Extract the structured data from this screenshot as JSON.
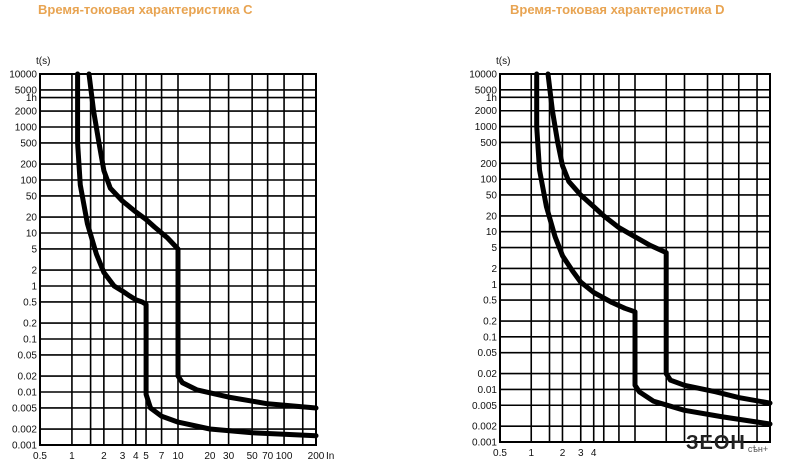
{
  "chart_data": [
    {
      "type": "line",
      "title": "Время-токовая характеристика C",
      "ylabel": "t(s)",
      "xlabel": "In",
      "x_scale": "log",
      "y_scale": "log",
      "xlim": [
        0.5,
        200
      ],
      "ylim": [
        0.001,
        10000
      ],
      "grid": true,
      "x_ticks": [
        {
          "v": 0.5,
          "label": "0.5"
        },
        {
          "v": 1,
          "label": "1"
        },
        {
          "v": 2,
          "label": "2"
        },
        {
          "v": 3,
          "label": "3"
        },
        {
          "v": 4,
          "label": "4"
        },
        {
          "v": 5,
          "label": "5"
        },
        {
          "v": 7,
          "label": "7"
        },
        {
          "v": 10,
          "label": "10"
        },
        {
          "v": 20,
          "label": "20"
        },
        {
          "v": 30,
          "label": "30"
        },
        {
          "v": 50,
          "label": "50"
        },
        {
          "v": 70,
          "label": "70"
        },
        {
          "v": 100,
          "label": "100"
        },
        {
          "v": 200,
          "label": "200"
        }
      ],
      "y_ticks": [
        {
          "v": 10000,
          "label": "10000"
        },
        {
          "v": 5000,
          "label": "5000"
        },
        {
          "v": 3600,
          "label": "1h"
        },
        {
          "v": 2000,
          "label": "2000"
        },
        {
          "v": 1000,
          "label": "1000"
        },
        {
          "v": 500,
          "label": "500"
        },
        {
          "v": 200,
          "label": "200"
        },
        {
          "v": 100,
          "label": "100"
        },
        {
          "v": 50,
          "label": "50"
        },
        {
          "v": 20,
          "label": "20"
        },
        {
          "v": 10,
          "label": "10"
        },
        {
          "v": 5,
          "label": "5"
        },
        {
          "v": 2,
          "label": "2"
        },
        {
          "v": 1,
          "label": "1"
        },
        {
          "v": 0.5,
          "label": "0.5"
        },
        {
          "v": 0.2,
          "label": "0.2"
        },
        {
          "v": 0.1,
          "label": "0.1"
        },
        {
          "v": 0.05,
          "label": "0.05"
        },
        {
          "v": 0.02,
          "label": "0.02"
        },
        {
          "v": 0.01,
          "label": "0.01"
        },
        {
          "v": 0.005,
          "label": "0.005"
        },
        {
          "v": 0.002,
          "label": "0.002"
        },
        {
          "v": 0.001,
          "label": "0.001"
        }
      ],
      "series": [
        {
          "x": [
            1.13,
            1.13,
            1.2,
            1.4,
            1.7,
            2.0,
            2.5,
            3.0,
            3.5,
            4.0,
            4.6,
            5.0,
            5.0,
            5.0,
            5.5,
            7,
            10,
            20,
            50,
            100,
            200
          ],
          "y": [
            10000,
            500,
            80,
            15,
            4,
            1.8,
            1.0,
            0.8,
            0.65,
            0.55,
            0.5,
            0.45,
            0.05,
            0.009,
            0.005,
            0.0035,
            0.0027,
            0.002,
            0.0017,
            0.0016,
            0.0015
          ]
        },
        {
          "x": [
            1.45,
            1.6,
            1.8,
            2.0,
            2.3,
            3,
            4,
            5,
            6,
            8,
            10,
            10,
            10,
            11,
            15,
            30,
            70,
            200
          ],
          "y": [
            10000,
            2000,
            500,
            150,
            70,
            40,
            25,
            18,
            13,
            8,
            5,
            0.05,
            0.02,
            0.015,
            0.011,
            0.008,
            0.006,
            0.005
          ]
        }
      ]
    },
    {
      "type": "line",
      "title": "Время-токовая характеристика D",
      "ylabel": "t(s)",
      "xlabel": "",
      "x_scale": "log",
      "y_scale": "log",
      "xlim": [
        0.5,
        200
      ],
      "ylim": [
        0.001,
        10000
      ],
      "grid": true,
      "x_ticks": [
        {
          "v": 0.5,
          "label": "0.5"
        },
        {
          "v": 1,
          "label": "1"
        },
        {
          "v": 2,
          "label": "2"
        },
        {
          "v": 3,
          "label": "3"
        },
        {
          "v": 4,
          "label": "4"
        }
      ],
      "y_ticks": [
        {
          "v": 10000,
          "label": "10000"
        },
        {
          "v": 5000,
          "label": "5000"
        },
        {
          "v": 3600,
          "label": "1h"
        },
        {
          "v": 2000,
          "label": "2000"
        },
        {
          "v": 1000,
          "label": "1000"
        },
        {
          "v": 500,
          "label": "500"
        },
        {
          "v": 200,
          "label": "200"
        },
        {
          "v": 100,
          "label": "100"
        },
        {
          "v": 50,
          "label": "50"
        },
        {
          "v": 20,
          "label": "20"
        },
        {
          "v": 10,
          "label": "10"
        },
        {
          "v": 5,
          "label": "5"
        },
        {
          "v": 2,
          "label": "2"
        },
        {
          "v": 1,
          "label": "1"
        },
        {
          "v": 0.5,
          "label": "0.5"
        },
        {
          "v": 0.2,
          "label": "0.2"
        },
        {
          "v": 0.1,
          "label": "0.1"
        },
        {
          "v": 0.05,
          "label": "0.05"
        },
        {
          "v": 0.02,
          "label": "0.02"
        },
        {
          "v": 0.01,
          "label": "0.01"
        },
        {
          "v": 0.005,
          "label": "0.005"
        },
        {
          "v": 0.002,
          "label": "0.002"
        },
        {
          "v": 0.001,
          "label": "0.001"
        }
      ],
      "series": [
        {
          "x": [
            1.13,
            1.13,
            1.2,
            1.4,
            1.7,
            2.0,
            2.5,
            3,
            4,
            6,
            8,
            10,
            10,
            10,
            11,
            15,
            30,
            70,
            200
          ],
          "y": [
            10000,
            1000,
            150,
            30,
            8,
            3.5,
            1.8,
            1.1,
            0.7,
            0.45,
            0.35,
            0.3,
            0.02,
            0.012,
            0.009,
            0.006,
            0.004,
            0.003,
            0.0022
          ]
        },
        {
          "x": [
            1.45,
            1.6,
            1.8,
            2.0,
            2.3,
            3,
            4,
            5,
            7,
            10,
            14,
            20,
            20,
            20,
            22,
            30,
            60,
            100,
            200
          ],
          "y": [
            10000,
            2000,
            500,
            180,
            90,
            50,
            30,
            20,
            12,
            8,
            5.5,
            4,
            0.05,
            0.02,
            0.015,
            0.012,
            0.009,
            0.007,
            0.0055
          ]
        }
      ]
    }
  ],
  "logo": {
    "main": "ЗЕОН",
    "sub": "сѣн+"
  }
}
